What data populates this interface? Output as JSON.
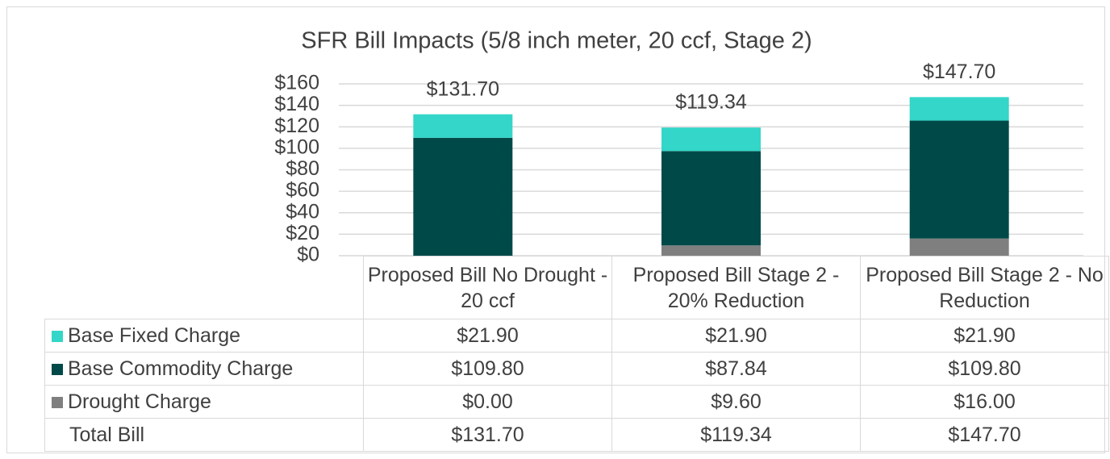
{
  "chart_data": {
    "type": "stacked_bar",
    "title": "SFR Bill Impacts (5/8 inch meter, 20 ccf, Stage 2)",
    "categories": [
      "Proposed Bill No Drought - 20 ccf",
      "Proposed Bill Stage 2 - 20% Reduction",
      "Proposed Bill Stage 2 - No Reduction"
    ],
    "series": [
      {
        "name": "Base Fixed Charge",
        "color": "#33d6c8",
        "values": [
          21.9,
          21.9,
          21.9
        ],
        "value_labels": [
          "$21.90",
          "$21.90",
          "$21.90"
        ]
      },
      {
        "name": "Base Commodity Charge",
        "color": "#004949",
        "values": [
          109.8,
          87.84,
          109.8
        ],
        "value_labels": [
          "$109.80",
          "$87.84",
          "$109.80"
        ]
      },
      {
        "name": "Drought Charge",
        "color": "#7f7f7f",
        "values": [
          0,
          9.6,
          16
        ],
        "value_labels": [
          "$0.00",
          "$9.60",
          "$16.00"
        ]
      }
    ],
    "totals": {
      "name": "Total Bill",
      "values": [
        131.7,
        119.34,
        147.7
      ],
      "value_labels": [
        "$131.70",
        "$119.34",
        "$147.70"
      ]
    },
    "ylim": [
      0,
      160
    ],
    "yticks": [
      {
        "value": 0,
        "label": "$0"
      },
      {
        "value": 20,
        "label": "$20"
      },
      {
        "value": 40,
        "label": "$40"
      },
      {
        "value": 60,
        "label": "$60"
      },
      {
        "value": 80,
        "label": "$80"
      },
      {
        "value": 100,
        "label": "$100"
      },
      {
        "value": 120,
        "label": "$120"
      },
      {
        "value": 140,
        "label": "$140"
      },
      {
        "value": 160,
        "label": "$160"
      }
    ],
    "grid": true
  }
}
